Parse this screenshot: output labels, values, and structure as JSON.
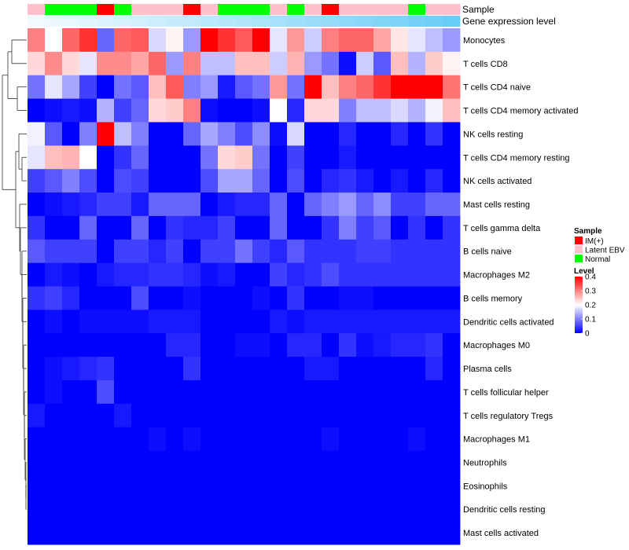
{
  "chart_data": {
    "type": "heatmap",
    "annotation_tracks": [
      "Sample",
      "Gene expression level"
    ],
    "sample_types": [
      "IM(+)",
      "Latent EBV",
      "Normal"
    ],
    "sample_colors": {
      "IM(+)": "#ff0000",
      "Latent EBV": "#ffc0cb",
      "Normal": "#00ff00"
    },
    "samples": [
      "Latent EBV",
      "Normal",
      "Normal",
      "Normal",
      "IM(+)",
      "Normal",
      "Latent EBV",
      "Latent EBV",
      "Latent EBV",
      "IM(+)",
      "Latent EBV",
      "Normal",
      "Normal",
      "Normal",
      "Latent EBV",
      "Normal",
      "Latent EBV",
      "IM(+)",
      "Latent EBV",
      "Latent EBV",
      "Latent EBV",
      "Latent EBV",
      "Normal",
      "Latent EBV",
      "Latent EBV"
    ],
    "gene_expression": [
      0.02,
      0.05,
      0.08,
      0.12,
      0.15,
      0.18,
      0.22,
      0.26,
      0.3,
      0.33,
      0.37,
      0.4,
      0.44,
      0.47,
      0.51,
      0.55,
      0.58,
      0.62,
      0.66,
      0.7,
      0.74,
      0.78,
      0.82,
      0.87,
      0.92
    ],
    "gene_expression_colors": [
      "#f4fbfe",
      "#5bc8f5"
    ],
    "rows": [
      "Monocytes",
      "T cells CD8",
      "T cells CD4 naive",
      "T cells CD4 memory activated",
      "NK cells resting",
      "T cells CD4 memory resting",
      "NK cells activated",
      "Mast cells resting",
      "T cells gamma delta",
      "B cells naive",
      "Macrophages M2",
      "B cells memory",
      "Dendritic cells activated",
      "Macrophages M0",
      "Plasma cells",
      "T cells follicular helper",
      "T cells regulatory  Tregs",
      "Macrophages M1",
      "Neutrophils",
      "Eosinophils",
      "Dendritic cells resting",
      "Mast cells activated"
    ],
    "values": [
      [
        0.3,
        0.2,
        0.32,
        0.36,
        0.08,
        0.32,
        0.33,
        0.17,
        0.21,
        0.12,
        0.4,
        0.36,
        0.33,
        0.4,
        0.18,
        0.28,
        0.16,
        0.3,
        0.32,
        0.32,
        0.27,
        0.22,
        0.18,
        0.15,
        0.12
      ],
      [
        0.23,
        0.29,
        0.23,
        0.18,
        0.29,
        0.29,
        0.27,
        0.32,
        0.12,
        0.3,
        0.15,
        0.15,
        0.25,
        0.25,
        0.16,
        0.26,
        0.12,
        0.09,
        0.01,
        0.16,
        0.07,
        0.25,
        0.14,
        0.24,
        0.21
      ],
      [
        0.09,
        0.18,
        0.13,
        0.05,
        0.0,
        0.09,
        0.07,
        0.25,
        0.33,
        0.1,
        0.12,
        0.02,
        0.07,
        0.09,
        0.28,
        0.09,
        0.4,
        0.25,
        0.3,
        0.32,
        0.36,
        0.4,
        0.4,
        0.4,
        0.31
      ],
      [
        0.0,
        0.01,
        0.02,
        0.01,
        0.14,
        0.05,
        0.08,
        0.23,
        0.24,
        0.3,
        0.01,
        0.0,
        0.0,
        0.01,
        0.2,
        0.03,
        0.23,
        0.23,
        0.1,
        0.15,
        0.15,
        0.17,
        0.14,
        0.19,
        0.25
      ],
      [
        0.19,
        0.07,
        0.0,
        0.1,
        0.4,
        0.15,
        0.1,
        0.0,
        0.0,
        0.08,
        0.13,
        0.1,
        0.06,
        0.11,
        0.01,
        0.17,
        0.0,
        0.0,
        0.03,
        0.0,
        0.0,
        0.03,
        0.0,
        0.04,
        0.0
      ],
      [
        0.18,
        0.25,
        0.26,
        0.2,
        0.0,
        0.04,
        0.08,
        0.0,
        0.0,
        0.0,
        0.09,
        0.23,
        0.24,
        0.09,
        0.0,
        0.05,
        0.0,
        0.0,
        0.02,
        0.0,
        0.0,
        0.0,
        0.0,
        0.0,
        0.0
      ],
      [
        0.05,
        0.07,
        0.1,
        0.06,
        0.0,
        0.06,
        0.05,
        0.0,
        0.0,
        0.0,
        0.06,
        0.13,
        0.13,
        0.08,
        0.0,
        0.06,
        0.0,
        0.03,
        0.04,
        0.02,
        0.0,
        0.02,
        0.0,
        0.03,
        0.0
      ],
      [
        0.0,
        0.01,
        0.02,
        0.03,
        0.05,
        0.05,
        0.02,
        0.08,
        0.08,
        0.08,
        0.0,
        0.02,
        0.03,
        0.03,
        0.08,
        0.0,
        0.08,
        0.1,
        0.12,
        0.08,
        0.11,
        0.05,
        0.05,
        0.08,
        0.08
      ],
      [
        0.04,
        0.0,
        0.0,
        0.08,
        0.0,
        0.0,
        0.08,
        0.0,
        0.04,
        0.03,
        0.03,
        0.05,
        0.0,
        0.0,
        0.08,
        0.0,
        0.0,
        0.04,
        0.1,
        0.05,
        0.07,
        0.0,
        0.04,
        0.0,
        0.04
      ],
      [
        0.07,
        0.05,
        0.05,
        0.05,
        0.0,
        0.05,
        0.05,
        0.03,
        0.05,
        0.0,
        0.05,
        0.05,
        0.09,
        0.05,
        0.03,
        0.07,
        0.04,
        0.04,
        0.04,
        0.05,
        0.05,
        0.04,
        0.04,
        0.04,
        0.04
      ],
      [
        0.0,
        0.02,
        0.01,
        0.0,
        0.02,
        0.03,
        0.03,
        0.04,
        0.04,
        0.03,
        0.01,
        0.02,
        0.0,
        0.0,
        0.05,
        0.03,
        0.04,
        0.06,
        0.04,
        0.04,
        0.04,
        0.04,
        0.04,
        0.04,
        0.04
      ],
      [
        0.04,
        0.05,
        0.03,
        0.0,
        0.0,
        0.0,
        0.06,
        0.0,
        0.0,
        0.01,
        0.0,
        0.0,
        0.0,
        0.01,
        0.0,
        0.04,
        0.0,
        0.0,
        0.01,
        0.01,
        0.0,
        0.0,
        0.0,
        0.0,
        0.0
      ],
      [
        0.0,
        0.01,
        0.0,
        0.01,
        0.01,
        0.01,
        0.01,
        0.02,
        0.02,
        0.02,
        0.0,
        0.0,
        0.0,
        0.0,
        0.02,
        0.01,
        0.02,
        0.02,
        0.02,
        0.02,
        0.02,
        0.02,
        0.02,
        0.02,
        0.02
      ],
      [
        0.0,
        0.0,
        0.0,
        0.0,
        0.0,
        0.0,
        0.0,
        0.0,
        0.03,
        0.03,
        0.0,
        0.0,
        0.01,
        0.01,
        0.0,
        0.03,
        0.03,
        0.0,
        0.04,
        0.01,
        0.02,
        0.03,
        0.03,
        0.04,
        0.0
      ],
      [
        0.0,
        0.01,
        0.02,
        0.03,
        0.04,
        0.0,
        0.0,
        0.0,
        0.0,
        0.04,
        0.0,
        0.0,
        0.0,
        0.0,
        0.0,
        0.0,
        0.02,
        0.02,
        0.0,
        0.0,
        0.0,
        0.0,
        0.0,
        0.03,
        0.0
      ],
      [
        0.0,
        0.01,
        0.0,
        0.0,
        0.06,
        0.0,
        0.0,
        0.0,
        0.0,
        0.0,
        0.0,
        0.0,
        0.0,
        0.0,
        0.0,
        0.0,
        0.0,
        0.0,
        0.0,
        0.0,
        0.0,
        0.0,
        0.0,
        0.0,
        0.0
      ],
      [
        0.02,
        0.0,
        0.0,
        0.0,
        0.0,
        0.02,
        0.0,
        0.0,
        0.0,
        0.0,
        0.0,
        0.0,
        0.0,
        0.0,
        0.0,
        0.0,
        0.0,
        0.0,
        0.0,
        0.0,
        0.0,
        0.0,
        0.0,
        0.0,
        0.0
      ],
      [
        0.0,
        0.0,
        0.0,
        0.0,
        0.0,
        0.0,
        0.0,
        0.01,
        0.0,
        0.01,
        0.0,
        0.0,
        0.0,
        0.0,
        0.0,
        0.0,
        0.0,
        0.01,
        0.0,
        0.0,
        0.0,
        0.0,
        0.01,
        0.0,
        0.0
      ],
      [
        0.0,
        0.0,
        0.0,
        0.0,
        0.0,
        0.0,
        0.0,
        0.0,
        0.0,
        0.0,
        0.0,
        0.0,
        0.0,
        0.0,
        0.0,
        0.0,
        0.0,
        0.0,
        0.0,
        0.0,
        0.0,
        0.0,
        0.0,
        0.0,
        0.0
      ],
      [
        0.0,
        0.0,
        0.0,
        0.0,
        0.0,
        0.0,
        0.0,
        0.0,
        0.0,
        0.0,
        0.0,
        0.0,
        0.0,
        0.0,
        0.0,
        0.0,
        0.0,
        0.0,
        0.0,
        0.0,
        0.0,
        0.0,
        0.0,
        0.0,
        0.0
      ],
      [
        0.0,
        0.0,
        0.0,
        0.0,
        0.0,
        0.0,
        0.0,
        0.0,
        0.0,
        0.0,
        0.0,
        0.0,
        0.0,
        0.0,
        0.0,
        0.0,
        0.0,
        0.0,
        0.0,
        0.0,
        0.0,
        0.0,
        0.0,
        0.0,
        0.0
      ],
      [
        0.0,
        0.0,
        0.0,
        0.0,
        0.0,
        0.0,
        0.0,
        0.0,
        0.0,
        0.0,
        0.0,
        0.0,
        0.0,
        0.0,
        0.0,
        0.0,
        0.0,
        0.0,
        0.0,
        0.0,
        0.0,
        0.0,
        0.0,
        0.0,
        0.0
      ]
    ],
    "color_scale": {
      "range": [
        0,
        0.4
      ],
      "low": "#0000ff",
      "mid": "#ffffff",
      "mid_value": 0.2,
      "high": "#ff0000"
    },
    "legend": {
      "sample_title": "Sample",
      "level_title": "Level",
      "level_ticks": [
        "0.4",
        "0.3",
        "0.2",
        "0.1",
        "0"
      ],
      "level_tick_values": [
        0.4,
        0.3,
        0.2,
        0.1,
        0
      ],
      "placement": "right"
    }
  }
}
